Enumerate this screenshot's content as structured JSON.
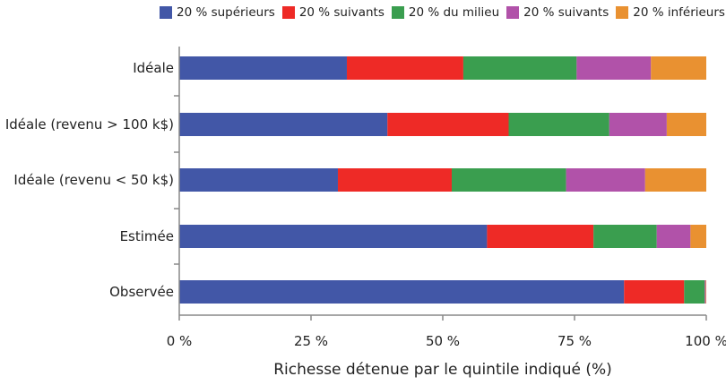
{
  "chart_data": {
    "type": "bar",
    "orientation": "horizontal",
    "stacked": true,
    "categories": [
      "Idéale",
      "Idéale (revenu > 100 k$)",
      "Idéale (revenu < 50 k$)",
      "Estimée",
      "Observée"
    ],
    "series": [
      {
        "name": "20 % supérieurs",
        "color": "#4257a7",
        "values": [
          31.8,
          39.5,
          30.1,
          58.4,
          84.4
        ]
      },
      {
        "name": "20 % suivants",
        "color": "#ee2a26",
        "values": [
          22.1,
          23.0,
          21.6,
          20.2,
          11.4
        ]
      },
      {
        "name": "20 % du milieu",
        "color": "#3a9e4f",
        "values": [
          21.5,
          19.1,
          21.7,
          12.0,
          3.9
        ]
      },
      {
        "name": "20 % suivants",
        "color": "#b152a9",
        "values": [
          14.1,
          10.9,
          15.0,
          6.4,
          0.2
        ]
      },
      {
        "name": "20 % inférieurs",
        "color": "#e99131",
        "values": [
          10.5,
          7.5,
          11.6,
          3.0,
          0.1
        ]
      }
    ],
    "xlabel": "Richesse détenue par le quintile indiqué (%)",
    "xlim": [
      0,
      100
    ],
    "xticks": [
      0,
      25,
      50,
      75,
      100
    ],
    "xtick_labels": [
      "0 %",
      "25 %",
      "50 %",
      "75 %",
      "100 %"
    ],
    "legend": "top",
    "grid": false
  }
}
